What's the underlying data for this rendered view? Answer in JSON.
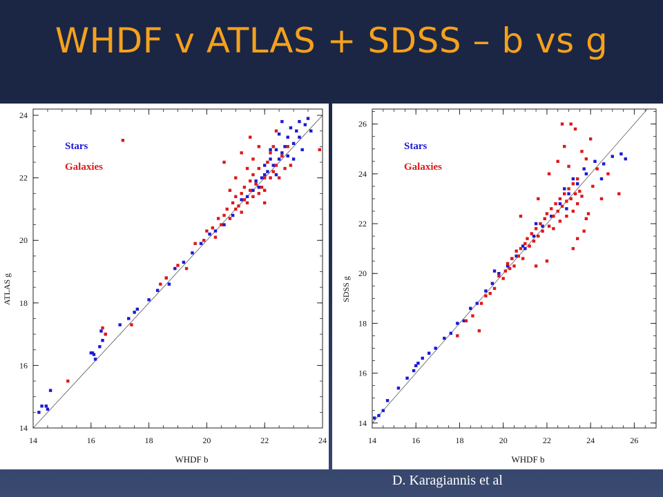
{
  "slide": {
    "title": "WHDF v ATLAS + SDSS – b vs g",
    "credit": "D. Karagiannis et al",
    "background_color": "#1b2644",
    "title_color": "#f5a11c"
  },
  "chart_data": [
    {
      "type": "scatter",
      "title": "",
      "xlabel": "WHDF b",
      "ylabel": "ATLAS g",
      "xlim": [
        14,
        24
      ],
      "ylim": [
        14,
        24.2
      ],
      "xticks": [
        "14",
        "16",
        "18",
        "20",
        "22",
        "24"
      ],
      "yticks": [
        "14",
        "16",
        "18",
        "20",
        "22",
        "24"
      ],
      "legend_position": "top-left",
      "reference_line": "y = x",
      "series": [
        {
          "name": "Stars",
          "color": "#1a1ad6",
          "points": [
            [
              14.2,
              14.5
            ],
            [
              14.3,
              14.7
            ],
            [
              14.45,
              14.7
            ],
            [
              14.5,
              14.6
            ],
            [
              14.6,
              15.2
            ],
            [
              16.0,
              16.4
            ],
            [
              16.05,
              16.4
            ],
            [
              16.1,
              16.35
            ],
            [
              16.15,
              16.2
            ],
            [
              16.3,
              16.6
            ],
            [
              16.4,
              16.8
            ],
            [
              16.35,
              17.1
            ],
            [
              16.5,
              17.0
            ],
            [
              17.0,
              17.3
            ],
            [
              17.3,
              17.5
            ],
            [
              17.5,
              17.7
            ],
            [
              17.6,
              17.8
            ],
            [
              18.0,
              18.1
            ],
            [
              18.3,
              18.4
            ],
            [
              18.6,
              18.8
            ],
            [
              18.7,
              18.6
            ],
            [
              18.9,
              19.1
            ],
            [
              19.2,
              19.3
            ],
            [
              19.5,
              19.6
            ],
            [
              19.8,
              19.9
            ],
            [
              20.1,
              20.2
            ],
            [
              20.3,
              20.3
            ],
            [
              20.6,
              20.5
            ],
            [
              20.9,
              20.8
            ],
            [
              21.2,
              21.3
            ],
            [
              21.4,
              21.4
            ],
            [
              21.6,
              21.6
            ],
            [
              21.7,
              21.9
            ],
            [
              21.9,
              22.0
            ],
            [
              22.0,
              22.1
            ],
            [
              22.1,
              22.2
            ],
            [
              22.2,
              22.6
            ],
            [
              22.3,
              22.4
            ],
            [
              22.4,
              22.9
            ],
            [
              22.5,
              22.6
            ],
            [
              22.5,
              23.4
            ],
            [
              22.6,
              22.8
            ],
            [
              22.7,
              23.0
            ],
            [
              22.8,
              22.7
            ],
            [
              22.9,
              23.6
            ],
            [
              23.0,
              23.1
            ],
            [
              23.1,
              23.5
            ],
            [
              23.2,
              23.3
            ],
            [
              23.3,
              22.9
            ],
            [
              23.4,
              23.7
            ],
            [
              23.5,
              23.9
            ],
            [
              23.6,
              23.5
            ],
            [
              23.0,
              22.6
            ],
            [
              22.4,
              22.1
            ],
            [
              22.6,
              23.8
            ],
            [
              22.2,
              22.9
            ],
            [
              23.2,
              23.8
            ],
            [
              22.8,
              23.3
            ],
            [
              21.8,
              21.7
            ],
            [
              22.0,
              22.4
            ]
          ]
        },
        {
          "name": "Galaxies",
          "color": "#e01818",
          "points": [
            [
              15.2,
              15.5
            ],
            [
              16.4,
              17.2
            ],
            [
              16.5,
              17.0
            ],
            [
              17.1,
              23.2
            ],
            [
              17.4,
              17.3
            ],
            [
              18.4,
              18.6
            ],
            [
              18.6,
              18.8
            ],
            [
              19.0,
              19.2
            ],
            [
              19.3,
              19.1
            ],
            [
              19.6,
              19.9
            ],
            [
              19.9,
              20.0
            ],
            [
              20.0,
              20.3
            ],
            [
              20.2,
              20.4
            ],
            [
              20.3,
              20.1
            ],
            [
              20.4,
              20.7
            ],
            [
              20.5,
              20.5
            ],
            [
              20.6,
              20.8
            ],
            [
              20.7,
              21.0
            ],
            [
              20.8,
              20.7
            ],
            [
              20.9,
              21.2
            ],
            [
              21.0,
              21.0
            ],
            [
              21.0,
              21.4
            ],
            [
              21.1,
              21.1
            ],
            [
              21.2,
              21.5
            ],
            [
              21.2,
              20.9
            ],
            [
              21.3,
              21.3
            ],
            [
              21.3,
              21.7
            ],
            [
              21.4,
              21.2
            ],
            [
              21.5,
              21.6
            ],
            [
              21.5,
              21.9
            ],
            [
              21.6,
              21.4
            ],
            [
              21.6,
              22.1
            ],
            [
              21.7,
              21.8
            ],
            [
              21.8,
              21.5
            ],
            [
              21.8,
              22.3
            ],
            [
              21.9,
              21.7
            ],
            [
              22.0,
              22.0
            ],
            [
              22.0,
              21.6
            ],
            [
              22.1,
              22.5
            ],
            [
              22.2,
              22.0
            ],
            [
              22.2,
              22.8
            ],
            [
              22.3,
              22.2
            ],
            [
              22.4,
              22.4
            ],
            [
              22.5,
              22.0
            ],
            [
              22.6,
              22.7
            ],
            [
              22.7,
              22.3
            ],
            [
              22.8,
              23.0
            ],
            [
              21.5,
              23.3
            ],
            [
              21.2,
              22.8
            ],
            [
              20.6,
              22.5
            ],
            [
              21.0,
              22.0
            ],
            [
              21.8,
              23.0
            ],
            [
              22.4,
              23.5
            ],
            [
              23.9,
              22.9
            ],
            [
              22.9,
              22.4
            ],
            [
              22.0,
              21.2
            ],
            [
              21.6,
              22.6
            ],
            [
              20.8,
              21.6
            ],
            [
              21.4,
              22.3
            ],
            [
              22.3,
              23.0
            ]
          ]
        }
      ]
    },
    {
      "type": "scatter",
      "title": "",
      "xlabel": "WHDF b",
      "ylabel": "SDSS g",
      "xlim": [
        14,
        27
      ],
      "ylim": [
        13.8,
        26.6
      ],
      "xticks": [
        "14",
        "16",
        "18",
        "20",
        "22",
        "24",
        "26"
      ],
      "yticks": [
        "14",
        "16",
        "18",
        "20",
        "22",
        "24",
        "26"
      ],
      "legend_position": "top-left",
      "reference_line": "y = x",
      "series": [
        {
          "name": "Stars",
          "color": "#1a1ad6",
          "points": [
            [
              14.1,
              14.2
            ],
            [
              14.3,
              14.3
            ],
            [
              14.5,
              14.5
            ],
            [
              14.7,
              14.9
            ],
            [
              15.2,
              15.4
            ],
            [
              15.6,
              15.8
            ],
            [
              15.9,
              16.1
            ],
            [
              16.0,
              16.3
            ],
            [
              16.1,
              16.4
            ],
            [
              16.3,
              16.6
            ],
            [
              16.6,
              16.8
            ],
            [
              16.9,
              17.0
            ],
            [
              17.3,
              17.4
            ],
            [
              17.6,
              17.6
            ],
            [
              17.9,
              18.0
            ],
            [
              18.2,
              18.1
            ],
            [
              18.5,
              18.6
            ],
            [
              18.8,
              18.8
            ],
            [
              19.2,
              19.3
            ],
            [
              19.5,
              19.6
            ],
            [
              19.8,
              20.0
            ],
            [
              20.2,
              20.3
            ],
            [
              20.6,
              20.7
            ],
            [
              21.0,
              21.0
            ],
            [
              21.4,
              21.5
            ],
            [
              21.8,
              21.9
            ],
            [
              22.2,
              22.3
            ],
            [
              22.6,
              22.8
            ],
            [
              23.0,
              23.2
            ],
            [
              23.4,
              23.6
            ],
            [
              23.8,
              24.0
            ],
            [
              24.2,
              24.5
            ],
            [
              24.6,
              24.4
            ],
            [
              25.0,
              24.7
            ],
            [
              25.4,
              24.8
            ],
            [
              25.6,
              24.6
            ],
            [
              24.5,
              23.8
            ],
            [
              23.7,
              24.2
            ],
            [
              23.2,
              23.8
            ],
            [
              22.8,
              23.4
            ],
            [
              21.5,
              22.0
            ],
            [
              20.9,
              21.1
            ],
            [
              19.6,
              20.1
            ],
            [
              20.4,
              20.6
            ],
            [
              22.9,
              22.6
            ]
          ]
        },
        {
          "name": "Galaxies",
          "color": "#e01818",
          "points": [
            [
              17.9,
              17.5
            ],
            [
              18.3,
              18.1
            ],
            [
              18.6,
              18.3
            ],
            [
              19.0,
              18.8
            ],
            [
              19.2,
              19.1
            ],
            [
              19.4,
              19.2
            ],
            [
              19.6,
              19.4
            ],
            [
              19.8,
              19.9
            ],
            [
              20.0,
              19.8
            ],
            [
              20.1,
              20.1
            ],
            [
              20.2,
              20.4
            ],
            [
              20.3,
              20.2
            ],
            [
              20.4,
              20.6
            ],
            [
              20.5,
              20.3
            ],
            [
              20.6,
              20.9
            ],
            [
              20.7,
              20.7
            ],
            [
              20.8,
              21.0
            ],
            [
              20.9,
              20.6
            ],
            [
              21.0,
              21.2
            ],
            [
              21.1,
              21.4
            ],
            [
              21.2,
              21.1
            ],
            [
              21.3,
              21.6
            ],
            [
              21.4,
              21.3
            ],
            [
              21.5,
              21.8
            ],
            [
              21.6,
              21.5
            ],
            [
              21.7,
              22.0
            ],
            [
              21.8,
              21.7
            ],
            [
              21.9,
              22.2
            ],
            [
              22.0,
              22.4
            ],
            [
              22.1,
              21.9
            ],
            [
              22.2,
              22.6
            ],
            [
              22.3,
              22.3
            ],
            [
              22.4,
              22.8
            ],
            [
              22.5,
              22.5
            ],
            [
              22.6,
              23.0
            ],
            [
              22.7,
              22.7
            ],
            [
              22.8,
              23.2
            ],
            [
              22.9,
              22.9
            ],
            [
              23.0,
              23.4
            ],
            [
              23.1,
              23.0
            ],
            [
              23.2,
              23.6
            ],
            [
              23.3,
              23.2
            ],
            [
              23.4,
              23.8
            ],
            [
              23.5,
              23.3
            ],
            [
              22.6,
              22.1
            ],
            [
              22.9,
              22.3
            ],
            [
              23.2,
              22.5
            ],
            [
              23.4,
              22.8
            ],
            [
              23.6,
              23.1
            ],
            [
              22.3,
              21.8
            ],
            [
              22.7,
              26.0
            ],
            [
              23.1,
              26.0
            ],
            [
              23.3,
              25.8
            ],
            [
              24.0,
              25.4
            ],
            [
              22.8,
              25.1
            ],
            [
              23.6,
              24.9
            ],
            [
              23.8,
              24.6
            ],
            [
              24.3,
              24.2
            ],
            [
              24.8,
              24.0
            ],
            [
              25.3,
              23.2
            ],
            [
              23.9,
              22.4
            ],
            [
              23.7,
              21.7
            ],
            [
              23.4,
              21.4
            ],
            [
              23.2,
              21.0
            ],
            [
              22.0,
              20.5
            ],
            [
              21.5,
              20.3
            ],
            [
              18.9,
              17.7
            ],
            [
              20.8,
              22.3
            ],
            [
              21.6,
              23.0
            ],
            [
              22.1,
              24.0
            ],
            [
              22.5,
              24.5
            ],
            [
              23.0,
              24.3
            ],
            [
              24.1,
              23.5
            ],
            [
              24.5,
              23.0
            ],
            [
              23.8,
              22.2
            ]
          ]
        }
      ]
    }
  ]
}
